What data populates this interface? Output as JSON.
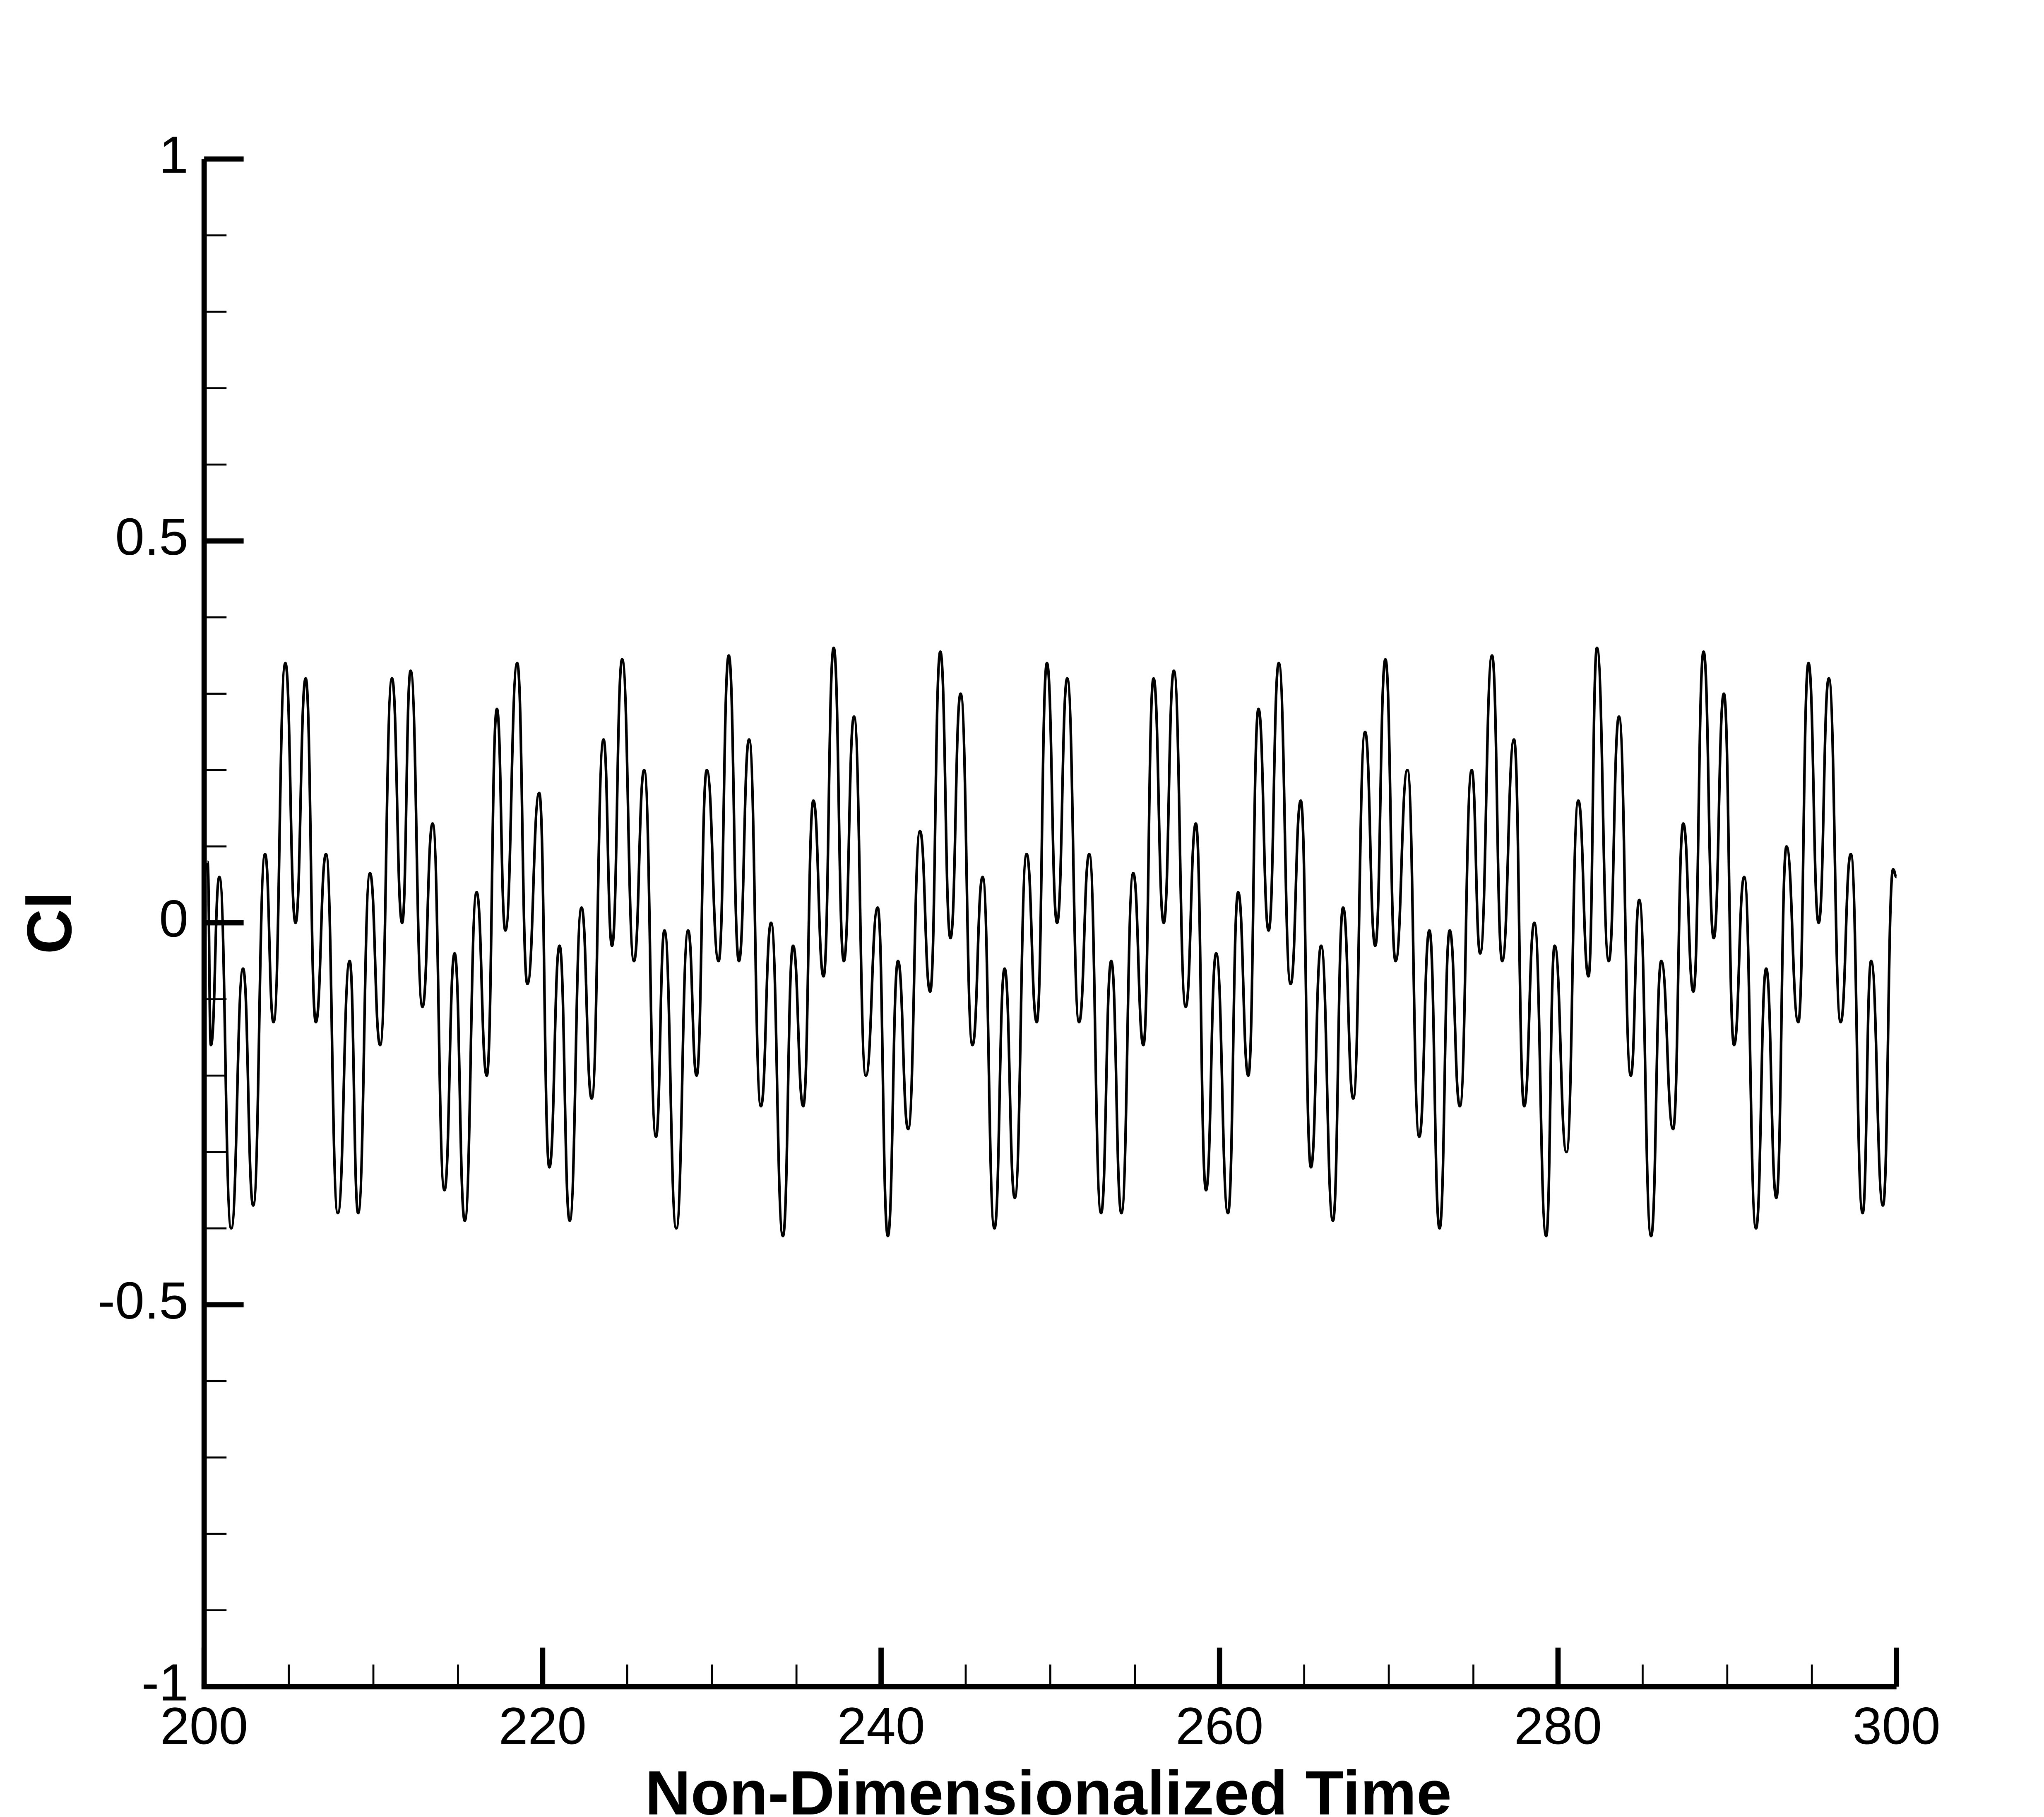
{
  "chart_data": {
    "type": "line",
    "x_label": "Non-Dimensionalized Time",
    "y_label": "Cl",
    "xlim": [
      200,
      300
    ],
    "xticks": [
      200,
      220,
      240,
      260,
      280,
      300
    ],
    "xminorticks": [
      205,
      210,
      215,
      225,
      230,
      235,
      245,
      250,
      255,
      265,
      270,
      275,
      285,
      290,
      295
    ],
    "ylim": [
      -1,
      1
    ],
    "yticks": [
      -1,
      -0.5,
      0,
      0.5,
      1
    ],
    "yminorticks": [
      -0.9,
      -0.8,
      -0.7,
      -0.6,
      -0.4,
      -0.3,
      -0.2,
      -0.1,
      0.1,
      0.2,
      0.3,
      0.4,
      0.6,
      0.7,
      0.8,
      0.9
    ],
    "grid": false,
    "series": [
      {
        "color": "#000000",
        "x": [
          200.2,
          200.4,
          200.9,
          201.6,
          202.3,
          202.9,
          203.6,
          204.1,
          204.8,
          205.4,
          206.0,
          206.6,
          207.2,
          207.9,
          208.6,
          209.1,
          209.8,
          210.4,
          211.1,
          211.7,
          212.2,
          212.9,
          213.5,
          214.2,
          214.8,
          215.4,
          216.1,
          216.7,
          217.3,
          217.8,
          218.5,
          219.1,
          219.8,
          220.4,
          221.0,
          221.6,
          222.3,
          222.9,
          223.6,
          224.1,
          224.7,
          225.4,
          226.0,
          226.7,
          227.2,
          227.9,
          228.6,
          229.1,
          229.7,
          230.4,
          231.0,
          231.6,
          232.2,
          232.9,
          233.5,
          234.2,
          234.8,
          235.4,
          236.0,
          236.6,
          237.2,
          237.8,
          238.4,
          239.1,
          239.8,
          240.4,
          241.0,
          241.6,
          242.3,
          242.9,
          243.5,
          244.1,
          244.7,
          245.4,
          246.0,
          246.7,
          247.3,
          247.9,
          248.6,
          249.2,
          249.8,
          250.4,
          251.0,
          251.7,
          252.3,
          253.0,
          253.6,
          254.2,
          254.9,
          255.5,
          256.1,
          256.7,
          257.3,
          258.0,
          258.6,
          259.2,
          259.8,
          260.5,
          261.1,
          261.7,
          262.3,
          262.9,
          263.5,
          264.2,
          264.8,
          265.4,
          266.0,
          266.7,
          267.3,
          267.9,
          268.6,
          269.2,
          269.8,
          270.4,
          271.1,
          271.8,
          272.4,
          273.0,
          273.6,
          274.2,
          274.9,
          275.4,
          276.1,
          276.7,
          277.4,
          278.0,
          278.6,
          279.3,
          279.8,
          280.5,
          281.2,
          281.8,
          282.3,
          283.0,
          283.6,
          284.3,
          284.8,
          285.5,
          286.1,
          286.8,
          287.4,
          288.0,
          288.6,
          289.2,
          289.8,
          290.4,
          291.0,
          291.7,
          292.3,
          292.9,
          293.5,
          294.2,
          294.8,
          295.4,
          296.0,
          296.7,
          297.3,
          298.0,
          298.5,
          299.2,
          299.8,
          300.0
        ],
        "values": [
          0.08,
          -0.16,
          0.06,
          -0.4,
          -0.06,
          -0.37,
          0.09,
          -0.13,
          0.34,
          0.0,
          0.32,
          -0.13,
          0.09,
          -0.38,
          -0.05,
          -0.38,
          0.065,
          -0.16,
          0.32,
          0.0,
          0.33,
          -0.11,
          0.13,
          -0.35,
          -0.04,
          -0.39,
          0.04,
          -0.2,
          0.28,
          -0.01,
          0.34,
          -0.08,
          0.17,
          -0.32,
          -0.03,
          -0.39,
          0.02,
          -0.23,
          0.24,
          -0.03,
          0.345,
          -0.05,
          0.2,
          -0.28,
          -0.01,
          -0.4,
          -0.01,
          -0.2,
          0.2,
          -0.05,
          0.35,
          -0.05,
          0.24,
          -0.24,
          0.0,
          -0.41,
          -0.03,
          -0.24,
          0.16,
          -0.07,
          0.36,
          -0.05,
          0.27,
          -0.2,
          0.02,
          -0.41,
          -0.05,
          -0.27,
          0.12,
          -0.09,
          0.355,
          -0.02,
          0.3,
          -0.16,
          0.06,
          -0.4,
          -0.06,
          -0.36,
          0.09,
          -0.13,
          0.34,
          0,
          0.32,
          -0.13,
          0.09,
          -0.38,
          -0.05,
          -0.38,
          0.065,
          -0.16,
          0.32,
          0,
          0.33,
          -0.11,
          0.13,
          -0.35,
          -0.04,
          -0.38,
          0.04,
          -0.2,
          0.28,
          -0.01,
          0.34,
          -0.08,
          0.16,
          -0.32,
          -0.03,
          -0.39,
          0.02,
          -0.23,
          0.25,
          -0.03,
          0.345,
          -0.05,
          0.2,
          -0.28,
          -0.01,
          -0.4,
          -0.01,
          -0.24,
          0.2,
          -0.04,
          0.35,
          -0.05,
          0.24,
          -0.24,
          0,
          -0.41,
          -0.03,
          -0.3,
          0.16,
          -0.07,
          0.36,
          -0.05,
          0.27,
          -0.2,
          0.03,
          -0.41,
          -0.05,
          -0.27,
          0.13,
          -0.09,
          0.355,
          -0.02,
          0.3,
          -0.16,
          0.06,
          -0.4,
          -0.06,
          -0.36,
          0.1,
          -0.13,
          0.34,
          0,
          0.32,
          -0.13,
          0.09,
          -0.38,
          -0.05,
          -0.37,
          0.07,
          0.06
        ]
      }
    ]
  }
}
